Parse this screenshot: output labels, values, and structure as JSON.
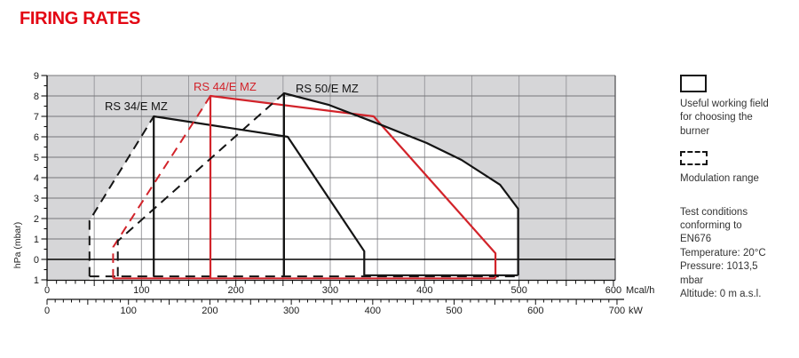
{
  "title": "FIRING RATES",
  "colors": {
    "title_red": "#e30613",
    "series_red": "#d2232a",
    "series_black": "#141414",
    "plot_bg": "#d6d6d8",
    "grid_vertical": "#9c9ca0",
    "grid_horizontal": "#77777a",
    "axis_black": "#111111",
    "envelope_white": "#ffffff"
  },
  "legend": {
    "working_field_swatch": "solid-box",
    "working_field_label": "Useful working field\nfor choosing the\nburner",
    "modulation_swatch": "dashed-box",
    "modulation_label": "Modulation range",
    "notes": "Test conditions\nconforming to\nEN676\nTemperature: 20°C\nPressure: 1013,5\nmbar\nAltitude: 0 m a.s.l."
  },
  "chart_data": {
    "type": "line",
    "title": "FIRING RATES",
    "y_axis": {
      "label": "hPa (mbar)",
      "min": -1,
      "max": 9,
      "label_step": 1,
      "minor_step": 0.5,
      "tick_labels": [
        "9",
        "8",
        "7",
        "6",
        "5",
        "4",
        "3",
        "2",
        "1",
        "0",
        "1"
      ]
    },
    "x_axes": [
      {
        "unit": "Mcal/h",
        "min": 0,
        "max": 600,
        "label_step": 100,
        "minor_step": 10,
        "major_step": 50,
        "tick_labels": [
          "0",
          "100",
          "200",
          "300",
          "400",
          "500",
          "600"
        ]
      },
      {
        "unit": "kW",
        "min": 0,
        "max": 700,
        "label_step": 100,
        "minor_step": 10,
        "major_step": 50,
        "tick_labels": [
          "0",
          "100",
          "200",
          "300",
          "400",
          "500",
          "600",
          "700"
        ]
      }
    ],
    "grid": {
      "vertical_step_mcal": 50,
      "horizontal_step_hpa": 1
    },
    "series": [
      {
        "name": "RS 34/E MZ",
        "color": "#141414",
        "style": "solid-with-dashed-modulation",
        "working_field_mcal_hpa": [
          [
            113,
            -0.85
          ],
          [
            113,
            7.0
          ],
          [
            255,
            6.0
          ],
          [
            336,
            0.4
          ],
          [
            336,
            -0.8
          ]
        ],
        "modulation_range_mcal_hpa": [
          [
            45,
            -0.83
          ],
          [
            45,
            1.9
          ],
          [
            113,
            7.0
          ]
        ]
      },
      {
        "name": "RS 44/E MZ",
        "color": "#d2232a",
        "style": "solid-with-dashed-modulation",
        "working_field_mcal_hpa": [
          [
            173,
            -0.93
          ],
          [
            173,
            8.0
          ],
          [
            346,
            7.0
          ],
          [
            475,
            0.3
          ],
          [
            475,
            -0.93
          ]
        ],
        "modulation_range_mcal_hpa": [
          [
            70,
            -0.93
          ],
          [
            70,
            0.6
          ],
          [
            173,
            8.0
          ]
        ],
        "bottom_line_mcal_hpa": [
          [
            70,
            -0.93
          ],
          [
            475,
            -0.93
          ]
        ]
      },
      {
        "name": "RS 50/E MZ",
        "color": "#141414",
        "style": "solid-with-dashed-modulation",
        "working_field_mcal_hpa": [
          [
            251,
            -0.8
          ],
          [
            251,
            8.13
          ],
          [
            298,
            7.57
          ],
          [
            353,
            6.6
          ],
          [
            402,
            5.7
          ],
          [
            439,
            4.87
          ],
          [
            480,
            3.65
          ],
          [
            499,
            2.48
          ],
          [
            499,
            -0.78
          ]
        ],
        "modulation_range_mcal_hpa": [
          [
            75,
            -0.83
          ],
          [
            75,
            0.9
          ],
          [
            251,
            8.13
          ]
        ],
        "bottom_line_mcal_hpa": [
          [
            336,
            -0.78
          ],
          [
            499,
            -0.78
          ]
        ]
      }
    ],
    "shared_dashed_bottom_mcal_hpa": [
      [
        45,
        -0.83
      ],
      [
        499,
        -0.83
      ]
    ],
    "white_envelope_mcal_hpa": [
      [
        45,
        -1.02
      ],
      [
        45,
        1.9
      ],
      [
        113,
        7.0
      ],
      [
        157,
        6.72
      ],
      [
        173,
        8.0
      ],
      [
        238,
        7.62
      ],
      [
        251,
        8.13
      ],
      [
        298,
        7.57
      ],
      [
        353,
        6.6
      ],
      [
        402,
        5.7
      ],
      [
        439,
        4.87
      ],
      [
        480,
        3.65
      ],
      [
        499,
        2.48
      ],
      [
        499,
        -1.02
      ]
    ]
  }
}
